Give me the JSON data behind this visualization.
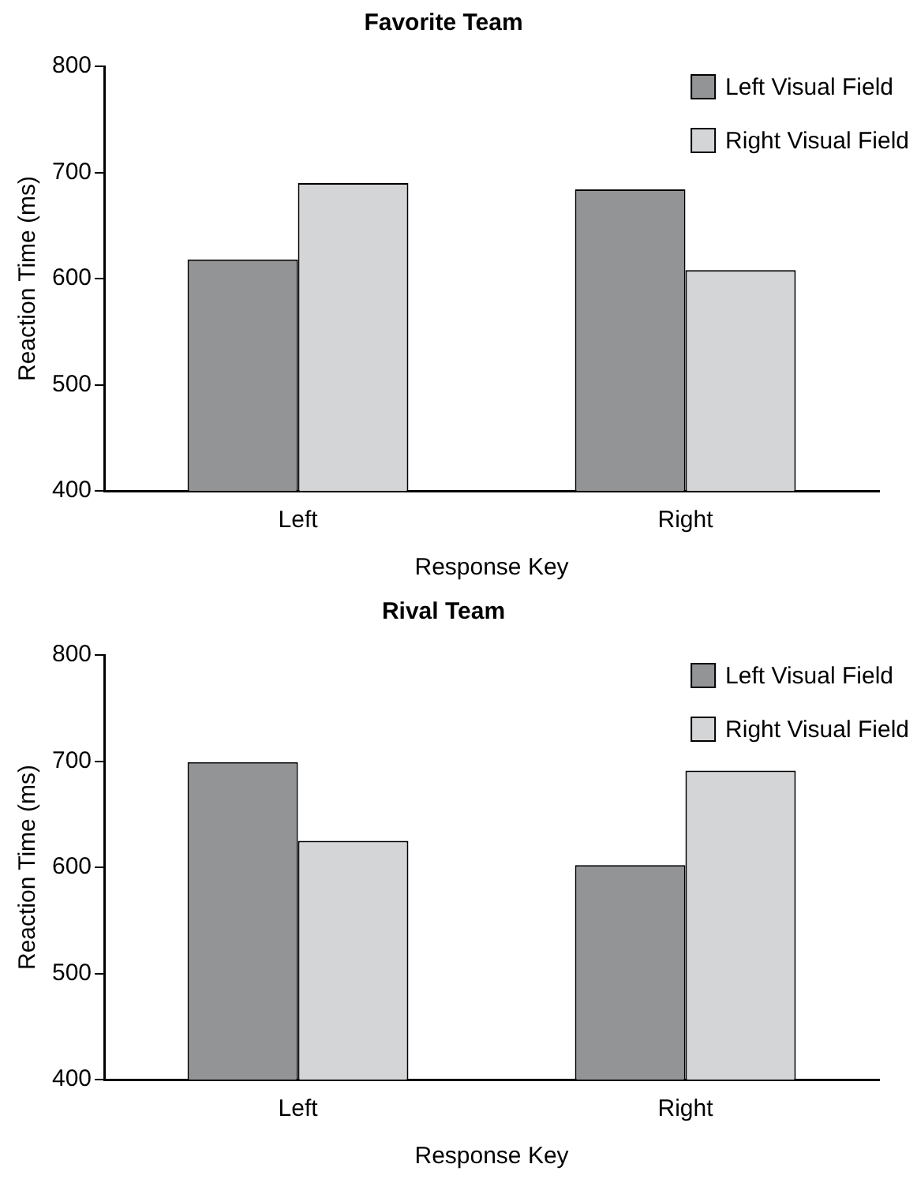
{
  "chart_data": [
    {
      "type": "bar",
      "title": "Favorite Team",
      "xlabel": "Response Key",
      "ylabel": "Reaction Time (ms)",
      "categories": [
        "Left",
        "Right"
      ],
      "series": [
        {
          "name": "Left Visual Field",
          "color": "#939496",
          "values": [
            618,
            684
          ]
        },
        {
          "name": "Right Visual Field",
          "color": "#d4d5d7",
          "values": [
            690,
            608
          ]
        }
      ],
      "ylim": [
        400,
        800
      ],
      "yticks": [
        400,
        500,
        600,
        700,
        800
      ],
      "grid": false,
      "legend": "top right"
    },
    {
      "type": "bar",
      "title": "Rival Team",
      "xlabel": "Response Key",
      "ylabel": "Reaction Time (ms)",
      "categories": [
        "Left",
        "Right"
      ],
      "series": [
        {
          "name": "Left Visual Field",
          "color": "#939496",
          "values": [
            699,
            602
          ]
        },
        {
          "name": "Right Visual Field",
          "color": "#d4d5d7",
          "values": [
            625,
            691
          ]
        }
      ],
      "ylim": [
        400,
        800
      ],
      "yticks": [
        400,
        500,
        600,
        700,
        800
      ],
      "grid": false,
      "legend": "top right"
    }
  ]
}
